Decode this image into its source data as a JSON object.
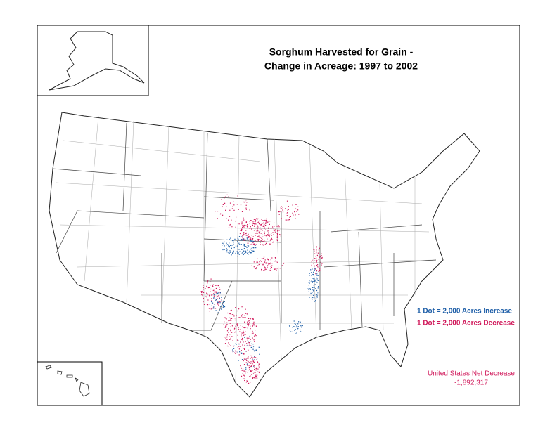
{
  "title": [
    "Sorghum Harvested for Grain -",
    "Change in Acreage:  1997 to 2002"
  ],
  "legend": [
    {
      "label": "1 Dot = 2,000 Acres Increase",
      "color": "#1f5fa8"
    },
    {
      "label": "1 Dot = 2,000 Acres Decrease",
      "color": "#d0185a"
    }
  ],
  "net": {
    "label": "United States Net Decrease",
    "value": "-1,892,317",
    "color": "#d0185a"
  }
}
